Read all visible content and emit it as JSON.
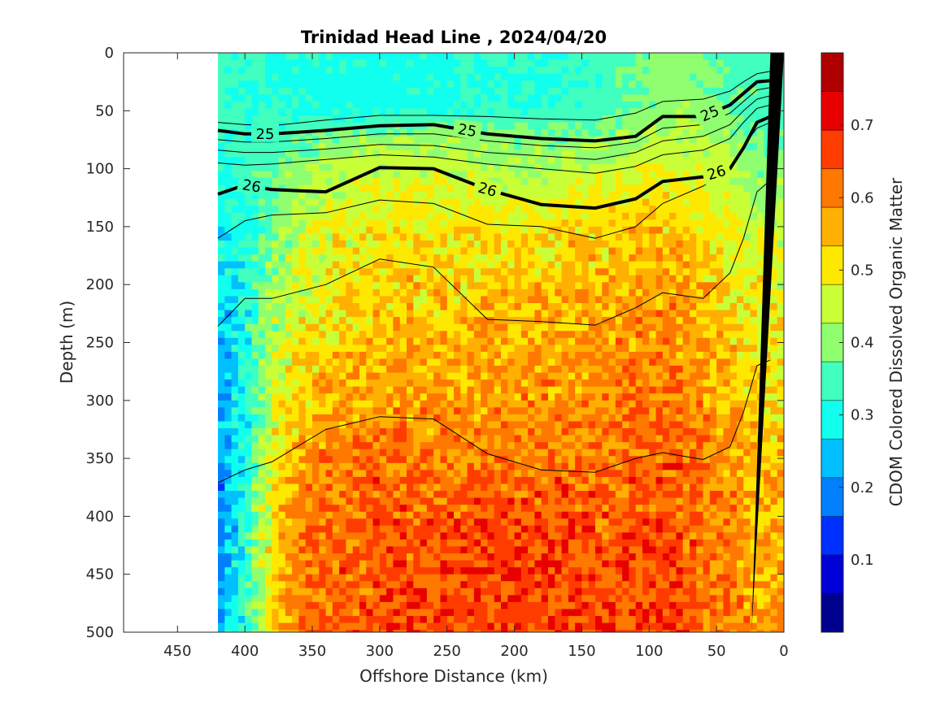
{
  "chart_data": {
    "type": "heatmap",
    "title": "Trinidad Head Line , 2024/04/20",
    "xlabel": "Offshore Distance (km)",
    "ylabel": "Depth (m)",
    "colorbar_label": "CDOM Colored Dissolved Organic Matter",
    "xlim": [
      490,
      0
    ],
    "ylim": [
      500,
      0
    ],
    "clim": [
      0,
      0.8
    ],
    "x_reversed": true,
    "y_reversed": true,
    "xticks": [
      450,
      400,
      350,
      300,
      250,
      200,
      150,
      100,
      50,
      0
    ],
    "xtick_labels": [
      "450",
      "400",
      "350",
      "300",
      "250",
      "200",
      "150",
      "100",
      "50",
      "0"
    ],
    "yticks": [
      0,
      50,
      100,
      150,
      200,
      250,
      300,
      350,
      400,
      450,
      500
    ],
    "ytick_labels": [
      "0",
      "50",
      "100",
      "150",
      "200",
      "250",
      "300",
      "350",
      "400",
      "450",
      "500"
    ],
    "colorbar_ticks": [
      0.1,
      0.2,
      0.3,
      0.4,
      0.5,
      0.6,
      0.7
    ],
    "colorbar_tick_labels": [
      "0.1",
      "0.2",
      "0.3",
      "0.4",
      "0.5",
      "0.6",
      "0.7"
    ],
    "colormap": [
      "#00008f",
      "#0000d9",
      "#0030ff",
      "#0080ff",
      "#00c0ff",
      "#10ffef",
      "#40ffbf",
      "#8fff70",
      "#c8ff37",
      "#ffe800",
      "#ffb000",
      "#ff7800",
      "#ff3c00",
      "#e80000",
      "#b00000"
    ],
    "data_extent_km": [
      420,
      0
    ],
    "x": [
      420,
      400,
      380,
      360,
      340,
      320,
      300,
      280,
      260,
      240,
      220,
      200,
      180,
      160,
      140,
      120,
      100,
      80,
      60,
      40,
      20,
      10
    ],
    "depth": [
      0,
      25,
      50,
      75,
      100,
      150,
      200,
      250,
      300,
      350,
      400,
      450,
      500
    ],
    "z": [
      [
        0.35,
        0.33,
        0.32,
        0.31,
        0.31,
        0.31,
        0.31,
        0.31,
        0.31,
        0.32,
        0.32,
        0.33,
        0.32,
        0.33,
        0.34,
        0.37,
        0.39,
        0.4,
        0.38,
        0.36,
        0.35,
        0.35
      ],
      [
        0.34,
        0.32,
        0.31,
        0.3,
        0.3,
        0.3,
        0.3,
        0.3,
        0.31,
        0.31,
        0.32,
        0.32,
        0.31,
        0.32,
        0.33,
        0.36,
        0.38,
        0.4,
        0.38,
        0.36,
        0.35,
        0.35
      ],
      [
        0.34,
        0.33,
        0.32,
        0.31,
        0.31,
        0.3,
        0.3,
        0.31,
        0.31,
        0.32,
        0.33,
        0.33,
        0.32,
        0.33,
        0.34,
        0.37,
        0.39,
        0.42,
        0.4,
        0.38,
        0.36,
        0.36
      ],
      [
        0.33,
        0.33,
        0.35,
        0.37,
        0.39,
        0.4,
        0.41,
        0.41,
        0.41,
        0.41,
        0.4,
        0.39,
        0.39,
        0.39,
        0.4,
        0.41,
        0.42,
        0.44,
        0.43,
        0.4,
        0.37,
        0.37
      ],
      [
        0.3,
        0.33,
        0.38,
        0.41,
        0.43,
        0.44,
        0.45,
        0.45,
        0.45,
        0.44,
        0.44,
        0.43,
        0.43,
        0.44,
        0.45,
        0.46,
        0.47,
        0.48,
        0.46,
        0.43,
        0.4,
        0.4
      ],
      [
        0.28,
        0.31,
        0.39,
        0.44,
        0.47,
        0.48,
        0.49,
        0.5,
        0.5,
        0.5,
        0.5,
        0.5,
        0.51,
        0.52,
        0.52,
        0.53,
        0.53,
        0.53,
        0.51,
        0.48,
        0.45,
        0.45
      ],
      [
        0.26,
        0.3,
        0.4,
        0.46,
        0.49,
        0.51,
        0.52,
        0.53,
        0.53,
        0.53,
        0.53,
        0.54,
        0.54,
        0.55,
        0.55,
        0.56,
        0.57,
        0.57,
        0.54,
        0.51,
        0.48,
        0.48
      ],
      [
        0.24,
        0.3,
        0.43,
        0.49,
        0.51,
        0.53,
        0.54,
        0.56,
        0.55,
        0.55,
        0.56,
        0.56,
        0.57,
        0.57,
        0.57,
        0.58,
        0.59,
        0.59,
        0.57,
        0.54,
        0.5,
        0.5
      ],
      [
        0.22,
        0.3,
        0.45,
        0.53,
        0.55,
        0.56,
        0.57,
        0.58,
        0.58,
        0.58,
        0.58,
        0.59,
        0.59,
        0.59,
        0.59,
        0.6,
        0.61,
        0.61,
        0.59,
        0.56,
        0.52,
        0.52
      ],
      [
        0.21,
        0.31,
        0.48,
        0.56,
        0.6,
        0.62,
        0.63,
        0.62,
        0.61,
        0.61,
        0.61,
        0.62,
        0.62,
        0.62,
        0.62,
        0.62,
        0.63,
        0.64,
        0.61,
        0.58,
        0.54,
        0.54
      ],
      [
        0.2,
        0.31,
        0.5,
        0.59,
        0.62,
        0.63,
        0.64,
        0.64,
        0.64,
        0.64,
        0.65,
        0.65,
        0.65,
        0.65,
        0.64,
        0.64,
        0.65,
        0.65,
        0.62,
        0.59,
        0.55,
        0.55
      ],
      [
        0.21,
        0.32,
        0.52,
        0.6,
        0.63,
        0.64,
        0.65,
        0.65,
        0.65,
        0.66,
        0.66,
        0.66,
        0.66,
        0.66,
        0.65,
        0.65,
        0.66,
        0.66,
        0.63,
        0.6,
        0.56,
        0.56
      ],
      [
        0.22,
        0.33,
        0.52,
        0.61,
        0.63,
        0.64,
        0.65,
        0.66,
        0.66,
        0.66,
        0.67,
        0.67,
        0.66,
        0.66,
        0.66,
        0.66,
        0.67,
        0.67,
        0.64,
        0.61,
        0.57,
        0.57
      ]
    ],
    "isopycnals": [
      {
        "level": "",
        "bold": false,
        "x": [
          420,
          400,
          380,
          340,
          300,
          260,
          220,
          180,
          140,
          110,
          90,
          60,
          40,
          30,
          20,
          10
        ],
        "depth": [
          60,
          62,
          63,
          58,
          54,
          54,
          55,
          57,
          58,
          52,
          42,
          40,
          33,
          25,
          18,
          16
        ]
      },
      {
        "level": "25",
        "bold": true,
        "label_x": [
          385,
          235,
          55
        ],
        "x": [
          420,
          400,
          380,
          340,
          300,
          260,
          220,
          180,
          140,
          110,
          90,
          60,
          40,
          30,
          20,
          10
        ],
        "depth": [
          67,
          70,
          70,
          67,
          63,
          62,
          70,
          74,
          76,
          72,
          55,
          55,
          45,
          35,
          25,
          24
        ]
      },
      {
        "level": "",
        "bold": false,
        "x": [
          420,
          400,
          380,
          340,
          300,
          260,
          220,
          180,
          140,
          110,
          90,
          60,
          40,
          30,
          20,
          10
        ],
        "depth": [
          75,
          77,
          77,
          74,
          70,
          70,
          76,
          80,
          82,
          77,
          65,
          62,
          52,
          42,
          32,
          30
        ]
      },
      {
        "level": "",
        "bold": false,
        "x": [
          420,
          400,
          380,
          340,
          300,
          260,
          220,
          180,
          140,
          110,
          90,
          60,
          40,
          30,
          20,
          10
        ],
        "depth": [
          84,
          86,
          86,
          83,
          79,
          80,
          86,
          89,
          92,
          86,
          76,
          72,
          62,
          50,
          40,
          37
        ]
      },
      {
        "level": "",
        "bold": false,
        "x": [
          420,
          400,
          380,
          340,
          300,
          260,
          220,
          180,
          140,
          110,
          90,
          60,
          40,
          30,
          20,
          10
        ],
        "depth": [
          95,
          97,
          96,
          92,
          88,
          90,
          96,
          100,
          104,
          98,
          88,
          84,
          74,
          60,
          48,
          45
        ]
      },
      {
        "level": "26",
        "bold": true,
        "label_x": [
          395,
          220,
          50
        ],
        "x": [
          420,
          400,
          380,
          340,
          300,
          260,
          220,
          180,
          140,
          110,
          90,
          60,
          40,
          30,
          20,
          10
        ],
        "depth": [
          122,
          114,
          118,
          120,
          99,
          100,
          118,
          131,
          134,
          126,
          111,
          107,
          100,
          82,
          60,
          55
        ]
      },
      {
        "level": "",
        "bold": false,
        "x": [
          420,
          400,
          380,
          340,
          300,
          260,
          220,
          180,
          140,
          110,
          90,
          60,
          40,
          30,
          20,
          10
        ],
        "depth": [
          160,
          145,
          140,
          138,
          127,
          130,
          148,
          150,
          160,
          150,
          130,
          115,
          100,
          80,
          65,
          60
        ]
      },
      {
        "level": "",
        "bold": false,
        "x": [
          420,
          400,
          380,
          340,
          300,
          260,
          220,
          180,
          140,
          110,
          90,
          60,
          40,
          30,
          20,
          10
        ],
        "depth": [
          236,
          212,
          212,
          200,
          178,
          185,
          230,
          232,
          235,
          220,
          207,
          212,
          190,
          160,
          120,
          110
        ]
      },
      {
        "level": "",
        "bold": false,
        "x": [
          420,
          400,
          380,
          340,
          300,
          260,
          220,
          180,
          140,
          110,
          90,
          60,
          40,
          30,
          20,
          10
        ],
        "depth": [
          371,
          360,
          353,
          325,
          314,
          316,
          346,
          360,
          362,
          350,
          345,
          351,
          340,
          310,
          270,
          265
        ]
      }
    ],
    "bathymetry": {
      "x": [
        24,
        10,
        0
      ],
      "depth": [
        500,
        0,
        0
      ]
    }
  }
}
